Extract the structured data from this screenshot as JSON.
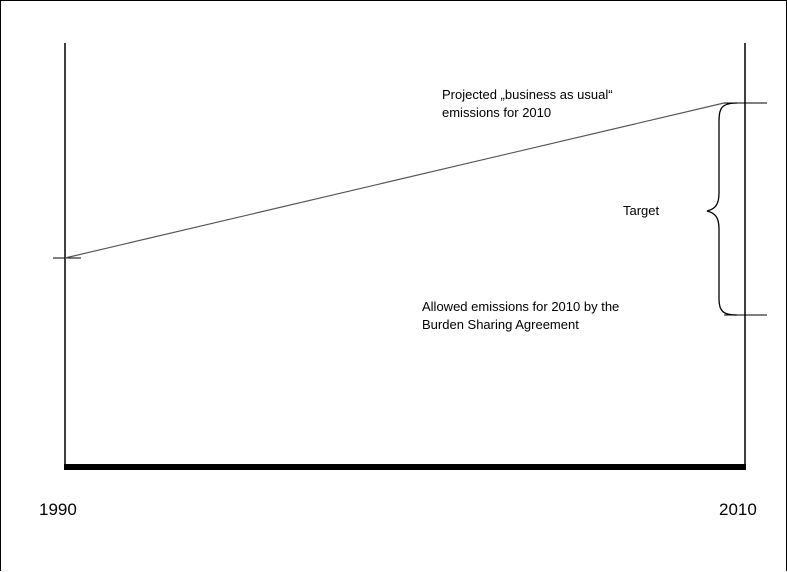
{
  "annotations": {
    "projected_line1": "Projected „business as usual“",
    "projected_line2": "emissions for 2010",
    "target": "Target",
    "allowed_line1": "Allowed emissions for 2010 by the",
    "allowed_line2": "Burden Sharing Agreement"
  },
  "axis": {
    "start_year": "1990",
    "end_year": "2010"
  },
  "colors": {
    "ink": "#000000",
    "trend_line": "#555555",
    "background": "#ffffff"
  }
}
